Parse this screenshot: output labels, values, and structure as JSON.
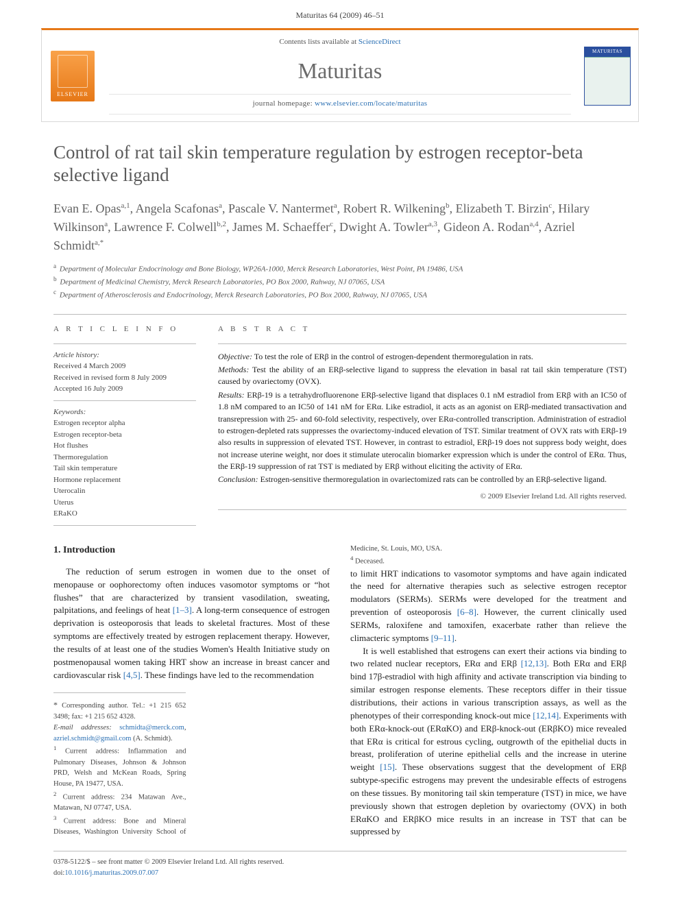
{
  "page_header": "Maturitas 64 (2009) 46–51",
  "masthead": {
    "logo_text": "ELSEVIER",
    "avail_prefix": "Contents lists available at ",
    "avail_link": "ScienceDirect",
    "journal": "Maturitas",
    "homepage_prefix": "journal homepage: ",
    "homepage_link": "www.elsevier.com/locate/maturitas",
    "cover_label": "MATURITAS"
  },
  "title": "Control of rat tail skin temperature regulation by estrogen receptor-beta selective ligand",
  "authors_html": "Evan E. Opas<sup>a,1</sup>, Angela Scafonas<sup>a</sup>, Pascale V. Nantermet<sup>a</sup>, Robert R. Wilkening<sup>b</sup>, Elizabeth T. Birzin<sup>c</sup>, Hilary Wilkinson<sup>a</sup>, Lawrence F. Colwell<sup>b,2</sup>, James M. Schaeffer<sup>c</sup>, Dwight A. Towler<sup>a,3</sup>, Gideon A. Rodan<sup>a,4</sup>, Azriel Schmidt<sup>a,*</sup>",
  "affiliations": [
    {
      "sup": "a",
      "text": "Department of Molecular Endocrinology and Bone Biology, WP26A-1000, Merck Research Laboratories, West Point, PA 19486, USA"
    },
    {
      "sup": "b",
      "text": "Department of Medicinal Chemistry, Merck Research Laboratories, PO Box 2000, Rahway, NJ 07065, USA"
    },
    {
      "sup": "c",
      "text": "Department of Atherosclerosis and Endocrinology, Merck Research Laboratories, PO Box 2000, Rahway, NJ 07065, USA"
    }
  ],
  "article_info": {
    "heading": "A R T I C L E   I N F O",
    "history_head": "Article history:",
    "history": [
      "Received 4 March 2009",
      "Received in revised form 8 July 2009",
      "Accepted 16 July 2009"
    ],
    "keywords_head": "Keywords:",
    "keywords": [
      "Estrogen receptor alpha",
      "Estrogen receptor-beta",
      "Hot flushes",
      "Thermoregulation",
      "Tail skin temperature",
      "Hormone replacement",
      "Uterocalin",
      "Uterus",
      "ERaKO"
    ]
  },
  "abstract": {
    "heading": "A B S T R A C T",
    "objective_label": "Objective:",
    "objective": " To test the role of ERβ in the control of estrogen-dependent thermoregulation in rats.",
    "methods_label": "Methods:",
    "methods": " Test the ability of an ERβ-selective ligand to suppress the elevation in basal rat tail skin temperature (TST) caused by ovariectomy (OVX).",
    "results_label": "Results:",
    "results": " ERβ-19 is a tetrahydrofluorenone ERβ-selective ligand that displaces 0.1 nM estradiol from ERβ with an IC50 of 1.8 nM compared to an IC50 of 141 nM for ERα. Like estradiol, it acts as an agonist on ERβ-mediated transactivation and transrepression with 25- and 60-fold selectivity, respectively, over ERα-controlled transcription. Administration of estradiol to estrogen-depleted rats suppresses the ovariectomy-induced elevation of TST. Similar treatment of OVX rats with ERβ-19 also results in suppression of elevated TST. However, in contrast to estradiol, ERβ-19 does not suppress body weight, does not increase uterine weight, nor does it stimulate uterocalin biomarker expression which is under the control of ERα. Thus, the ERβ-19 suppression of rat TST is mediated by ERβ without eliciting the activity of ERα.",
    "conclusion_label": "Conclusion:",
    "conclusion": " Estrogen-sensitive thermoregulation in ovariectomized rats can be controlled by an ERβ-selective ligand.",
    "copyright": "© 2009 Elsevier Ireland Ltd. All rights reserved."
  },
  "section1": {
    "heading": "1. Introduction",
    "para1": "The reduction of serum estrogen in women due to the onset of menopause or oophorectomy often induces vasomotor symptoms or “hot flushes” that are characterized by transient vasodilation, sweating, palpitations, and feelings of heat [1–3]. A long-term consequence of estrogen deprivation is osteoporosis that leads to skeletal fractures. Most of these symptoms are effectively treated by estrogen replacement therapy. However, the results of at least one of the studies Women's Health Initiative study on postmenopausal women taking HRT show an increase in breast cancer and cardiovascular risk [4,5]. These findings have led to the recommendation",
    "para2": "to limit HRT indications to vasomotor symptoms and have again indicated the need for alternative therapies such as selective estrogen receptor modulators (SERMs). SERMs were developed for the treatment and prevention of osteoporosis [6–8]. However, the current clinically used SERMs, raloxifene and tamoxifen, exacerbate rather than relieve the climacteric symptoms [9–11].",
    "para3": "It is well established that estrogens can exert their actions via binding to two related nuclear receptors, ERα and ERβ [12,13]. Both ERα and ERβ bind 17β-estradiol with high affinity and activate transcription via binding to similar estrogen response elements. These receptors differ in their tissue distributions, their actions in various transcription assays, as well as the phenotypes of their corresponding knock-out mice [12,14]. Experiments with both ERα-knock-out (ERαKO) and ERβ-knock-out (ERβKO) mice revealed that ERα is critical for estrous cycling, outgrowth of the epithelial ducts in breast, proliferation of uterine epithelial cells and the increase in uterine weight [15]. These observations suggest that the development of ERβ subtype-specific estrogens may prevent the undesirable effects of estrogens on these tissues. By monitoring tail skin temperature (TST) in mice, we have previously shown that estrogen depletion by ovariectomy (OVX) in both ERαKO and ERβKO mice results in an increase in TST that can be suppressed by"
  },
  "footnotes": {
    "corr": "Corresponding author. Tel.: +1 215 652 3498; fax: +1 215 652 4328.",
    "email_label": "E-mail addresses:",
    "email1": "schmidta@merck.com",
    "email2": "azriel.schmidt@gmail.com",
    "email_name": "(A. Schmidt).",
    "n1": "Current address: Inflammation and Pulmonary Diseases, Johnson & Johnson PRD, Welsh and McKean Roads, Spring House, PA 19477, USA.",
    "n2": "Current address: 234 Matawan Ave., Matawan, NJ 07747, USA.",
    "n3": "Current address: Bone and Mineral Diseases, Washington University School of Medicine, St. Louis, MO, USA.",
    "n4": "Deceased."
  },
  "footer": {
    "line1": "0378-5122/$ – see front matter © 2009 Elsevier Ireland Ltd. All rights reserved.",
    "doi_prefix": "doi:",
    "doi": "10.1016/j.maturitas.2009.07.007"
  },
  "colors": {
    "accent_orange": "#e67817",
    "link_blue": "#2a6fb3",
    "rule_gray": "#bbbbbb",
    "text_gray": "#5a5a5a"
  }
}
